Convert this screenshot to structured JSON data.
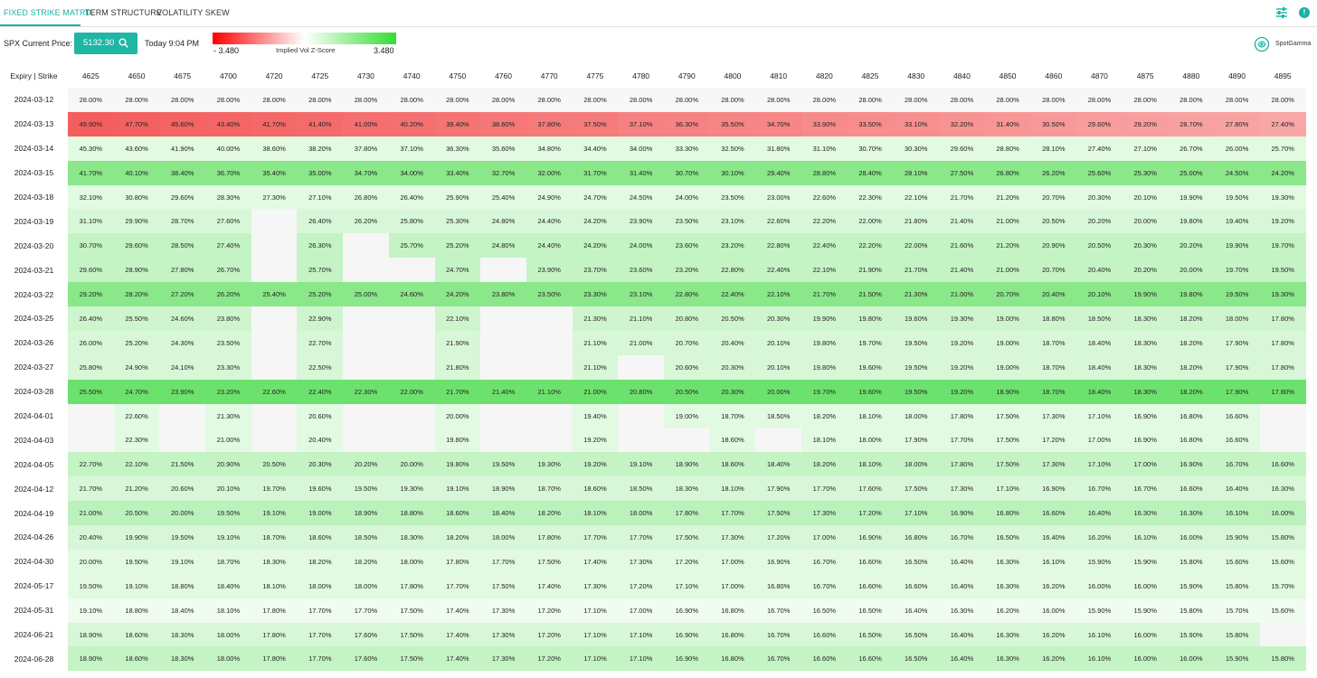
{
  "tabs": [
    {
      "label": "FIXED STRIKE MATRIX",
      "active": true
    },
    {
      "label": "TERM STRUCTURE",
      "active": false
    },
    {
      "label": "VOLATILITY SKEW",
      "active": false
    }
  ],
  "header": {
    "price_label": "SPX Current Price:",
    "price_value": "5132.30",
    "time": "Today 9:04 PM",
    "z_min": "- 3.480",
    "z_label": "Implied Vol Z-Score",
    "z_max": "3.480",
    "brand": "SpotGamma"
  },
  "colors": {
    "accent": "#1fb6a6",
    "negative": "#ff0000",
    "positive": "#33dd33"
  },
  "icons": [
    "filter-sliders-icon",
    "info-icon",
    "search-icon",
    "spotgamma-logo-icon"
  ],
  "matrix": {
    "corner_label": "Expiry | Strike",
    "strikes": [
      "4625",
      "4650",
      "4675",
      "4700",
      "4720",
      "4725",
      "4730",
      "4740",
      "4750",
      "4760",
      "4770",
      "4775",
      "4780",
      "4790",
      "4800",
      "4810",
      "4820",
      "4825",
      "4830",
      "4840",
      "4850",
      "4860",
      "4870",
      "4875",
      "4880",
      "4890",
      "4895"
    ],
    "rows": [
      {
        "expiry": "2024-03-12",
        "z": 0.0,
        "cells": [
          "28.00%",
          "28.00%",
          "28.00%",
          "28.00%",
          "28.00%",
          "28.00%",
          "28.00%",
          "28.00%",
          "28.00%",
          "28.00%",
          "28.00%",
          "28.00%",
          "28.00%",
          "28.00%",
          "28.00%",
          "28.00%",
          "28.00%",
          "28.00%",
          "28.00%",
          "28.00%",
          "28.00%",
          "28.00%",
          "28.00%",
          "28.00%",
          "28.00%",
          "28.00%",
          "28.00%"
        ]
      },
      {
        "expiry": "2024-03-13",
        "z": -1.0,
        "cells": [
          "49.90%",
          "47.70%",
          "45.60%",
          "43.40%",
          "41.70%",
          "41.40%",
          "41.00%",
          "40.20%",
          "39.40%",
          "38.60%",
          "37.80%",
          "37.50%",
          "37.10%",
          "36.30%",
          "35.50%",
          "34.70%",
          "33.90%",
          "33.50%",
          "33.10%",
          "32.20%",
          "31.40%",
          "30.50%",
          "29.60%",
          "29.20%",
          "28.70%",
          "27.80%",
          "27.40%"
        ]
      },
      {
        "expiry": "2024-03-14",
        "z": 0.15,
        "cells": [
          "45.30%",
          "43.60%",
          "41.90%",
          "40.00%",
          "38.60%",
          "38.20%",
          "37.80%",
          "37.10%",
          "36.30%",
          "35.60%",
          "34.80%",
          "34.40%",
          "34.00%",
          "33.30%",
          "32.50%",
          "31.80%",
          "31.10%",
          "30.70%",
          "30.30%",
          "29.60%",
          "28.80%",
          "28.10%",
          "27.40%",
          "27.10%",
          "26.70%",
          "26.00%",
          "25.70%"
        ]
      },
      {
        "expiry": "2024-03-15",
        "z": 0.6,
        "cells": [
          "41.70%",
          "40.10%",
          "38.40%",
          "36.70%",
          "35.40%",
          "35.00%",
          "34.70%",
          "34.00%",
          "33.40%",
          "32.70%",
          "32.00%",
          "31.70%",
          "31.40%",
          "30.70%",
          "30.10%",
          "29.40%",
          "28.80%",
          "28.40%",
          "28.10%",
          "27.50%",
          "26.80%",
          "26.20%",
          "25.60%",
          "25.30%",
          "25.00%",
          "24.50%",
          "24.20%"
        ]
      },
      {
        "expiry": "2024-03-18",
        "z": 0.15,
        "cells": [
          "32.10%",
          "30.80%",
          "29.60%",
          "28.30%",
          "27.30%",
          "27.10%",
          "26.80%",
          "26.40%",
          "25.90%",
          "25.40%",
          "24.90%",
          "24.70%",
          "24.50%",
          "24.00%",
          "23.50%",
          "23.00%",
          "22.60%",
          "22.30%",
          "22.10%",
          "21.70%",
          "21.20%",
          "20.70%",
          "20.30%",
          "20.10%",
          "19.90%",
          "19.50%",
          "19.30%"
        ]
      },
      {
        "expiry": "2024-03-19",
        "z": 0.2,
        "cells": [
          "31.10%",
          "29.90%",
          "28.70%",
          "27.60%",
          "",
          "26.40%",
          "26.20%",
          "25.80%",
          "25.30%",
          "24.80%",
          "24.40%",
          "24.20%",
          "23.90%",
          "23.50%",
          "23.10%",
          "22.60%",
          "22.20%",
          "22.00%",
          "21.80%",
          "21.40%",
          "21.00%",
          "20.50%",
          "20.20%",
          "20.00%",
          "19.80%",
          "19.40%",
          "19.20%"
        ]
      },
      {
        "expiry": "2024-03-20",
        "z": 0.3,
        "cells": [
          "30.70%",
          "29.60%",
          "28.50%",
          "27.40%",
          "",
          "26.30%",
          "",
          "25.70%",
          "25.20%",
          "24.80%",
          "24.40%",
          "24.20%",
          "24.00%",
          "23.60%",
          "23.20%",
          "22.80%",
          "22.40%",
          "22.20%",
          "22.00%",
          "21.60%",
          "21.20%",
          "20.90%",
          "20.50%",
          "20.30%",
          "20.20%",
          "19.90%",
          "19.70%"
        ]
      },
      {
        "expiry": "2024-03-21",
        "z": 0.3,
        "cells": [
          "29.60%",
          "28.90%",
          "27.80%",
          "26.70%",
          "",
          "25.70%",
          "",
          "",
          "24.70%",
          "",
          "23.90%",
          "23.70%",
          "23.60%",
          "23.20%",
          "22.80%",
          "22.40%",
          "22.10%",
          "21.90%",
          "21.70%",
          "21.40%",
          "21.00%",
          "20.70%",
          "20.40%",
          "20.20%",
          "20.00%",
          "19.70%",
          "19.50%"
        ]
      },
      {
        "expiry": "2024-03-22",
        "z": 0.6,
        "cells": [
          "29.20%",
          "28.20%",
          "27.20%",
          "26.20%",
          "25.40%",
          "25.20%",
          "25.00%",
          "24.60%",
          "24.20%",
          "23.80%",
          "23.50%",
          "23.30%",
          "23.10%",
          "22.80%",
          "22.40%",
          "22.10%",
          "21.70%",
          "21.50%",
          "21.30%",
          "21.00%",
          "20.70%",
          "20.40%",
          "20.10%",
          "19.90%",
          "19.80%",
          "19.50%",
          "19.30%"
        ]
      },
      {
        "expiry": "2024-03-25",
        "z": 0.25,
        "cells": [
          "26.40%",
          "25.50%",
          "24.60%",
          "23.80%",
          "",
          "22.90%",
          "",
          "",
          "22.10%",
          "",
          "",
          "21.30%",
          "21.10%",
          "20.80%",
          "20.50%",
          "20.30%",
          "19.90%",
          "19.80%",
          "19.60%",
          "19.30%",
          "19.00%",
          "18.80%",
          "18.50%",
          "18.30%",
          "18.20%",
          "18.00%",
          "17.80%"
        ]
      },
      {
        "expiry": "2024-03-26",
        "z": 0.2,
        "cells": [
          "26.00%",
          "25.20%",
          "24.30%",
          "23.50%",
          "",
          "22.70%",
          "",
          "",
          "21.90%",
          "",
          "",
          "21.10%",
          "21.00%",
          "20.70%",
          "20.40%",
          "20.10%",
          "19.80%",
          "19.70%",
          "19.50%",
          "19.20%",
          "19.00%",
          "18.70%",
          "18.40%",
          "18.30%",
          "18.20%",
          "17.90%",
          "17.80%"
        ]
      },
      {
        "expiry": "2024-03-27",
        "z": 0.2,
        "cells": [
          "25.80%",
          "24.90%",
          "24.10%",
          "23.30%",
          "",
          "22.50%",
          "",
          "",
          "21.80%",
          "",
          "",
          "21.10%",
          "",
          "20.60%",
          "20.30%",
          "20.10%",
          "19.80%",
          "19.60%",
          "19.50%",
          "19.20%",
          "19.00%",
          "18.70%",
          "18.40%",
          "18.30%",
          "18.20%",
          "17.90%",
          "17.80%"
        ]
      },
      {
        "expiry": "2024-03-28",
        "z": 0.75,
        "cells": [
          "25.50%",
          "24.70%",
          "23.90%",
          "23.20%",
          "22.60%",
          "22.40%",
          "22.30%",
          "22.00%",
          "21.70%",
          "21.40%",
          "21.10%",
          "21.00%",
          "20.80%",
          "20.50%",
          "20.30%",
          "20.00%",
          "19.70%",
          "19.60%",
          "19.50%",
          "19.20%",
          "18.90%",
          "18.70%",
          "18.40%",
          "18.30%",
          "18.20%",
          "17.90%",
          "17.80%"
        ]
      },
      {
        "expiry": "2024-04-01",
        "z": 0.15,
        "cells": [
          "",
          "22.60%",
          "",
          "21.30%",
          "",
          "20.60%",
          "",
          "",
          "20.00%",
          "",
          "",
          "19.40%",
          "",
          "19.00%",
          "18.70%",
          "18.50%",
          "18.20%",
          "18.10%",
          "18.00%",
          "17.80%",
          "17.50%",
          "17.30%",
          "17.10%",
          "16.90%",
          "16.80%",
          "16.60%",
          ""
        ]
      },
      {
        "expiry": "2024-04-03",
        "z": 0.15,
        "cells": [
          "",
          "22.30%",
          "",
          "21.00%",
          "",
          "20.40%",
          "",
          "",
          "19.80%",
          "",
          "",
          "19.20%",
          "",
          "",
          "18.60%",
          "",
          "18.10%",
          "18.00%",
          "17.90%",
          "17.70%",
          "17.50%",
          "17.20%",
          "17.00%",
          "16.90%",
          "16.80%",
          "16.60%",
          ""
        ]
      },
      {
        "expiry": "2024-04-05",
        "z": 0.3,
        "cells": [
          "22.70%",
          "22.10%",
          "21.50%",
          "20.90%",
          "20.50%",
          "20.30%",
          "20.20%",
          "20.00%",
          "19.80%",
          "19.50%",
          "19.30%",
          "19.20%",
          "19.10%",
          "18.90%",
          "18.60%",
          "18.40%",
          "18.20%",
          "18.10%",
          "18.00%",
          "17.80%",
          "17.50%",
          "17.30%",
          "17.10%",
          "17.00%",
          "16.90%",
          "16.70%",
          "16.60%"
        ]
      },
      {
        "expiry": "2024-04-12",
        "z": 0.2,
        "cells": [
          "21.70%",
          "21.20%",
          "20.60%",
          "20.10%",
          "19.70%",
          "19.60%",
          "19.50%",
          "19.30%",
          "19.10%",
          "18.90%",
          "18.70%",
          "18.60%",
          "18.50%",
          "18.30%",
          "18.10%",
          "17.90%",
          "17.70%",
          "17.60%",
          "17.50%",
          "17.30%",
          "17.10%",
          "16.90%",
          "16.70%",
          "16.70%",
          "16.60%",
          "16.40%",
          "16.30%"
        ]
      },
      {
        "expiry": "2024-04-19",
        "z": 0.35,
        "cells": [
          "21.00%",
          "20.50%",
          "20.00%",
          "19.50%",
          "19.10%",
          "19.00%",
          "18.90%",
          "18.80%",
          "18.60%",
          "18.40%",
          "18.20%",
          "18.10%",
          "18.00%",
          "17.80%",
          "17.70%",
          "17.50%",
          "17.30%",
          "17.20%",
          "17.10%",
          "16.90%",
          "16.80%",
          "16.60%",
          "16.40%",
          "16.30%",
          "16.30%",
          "16.10%",
          "16.00%"
        ]
      },
      {
        "expiry": "2024-04-26",
        "z": 0.2,
        "cells": [
          "20.40%",
          "19.90%",
          "19.50%",
          "19.10%",
          "18.70%",
          "18.60%",
          "18.50%",
          "18.30%",
          "18.20%",
          "18.00%",
          "17.80%",
          "17.70%",
          "17.70%",
          "17.50%",
          "17.30%",
          "17.20%",
          "17.00%",
          "16.90%",
          "16.80%",
          "16.70%",
          "16.50%",
          "16.40%",
          "16.20%",
          "16.10%",
          "16.00%",
          "15.90%",
          "15.80%"
        ]
      },
      {
        "expiry": "2024-04-30",
        "z": 0.15,
        "cells": [
          "20.00%",
          "19.50%",
          "19.10%",
          "18.70%",
          "18.30%",
          "18.20%",
          "18.20%",
          "18.00%",
          "17.80%",
          "17.70%",
          "17.50%",
          "17.40%",
          "17.30%",
          "17.20%",
          "17.00%",
          "16.90%",
          "16.70%",
          "16.60%",
          "16.50%",
          "16.40%",
          "16.30%",
          "16.10%",
          "15.90%",
          "15.90%",
          "15.80%",
          "15.60%",
          "15.60%"
        ]
      },
      {
        "expiry": "2024-05-17",
        "z": 0.15,
        "cells": [
          "19.50%",
          "19.10%",
          "18.80%",
          "18.40%",
          "18.10%",
          "18.00%",
          "18.00%",
          "17.80%",
          "17.70%",
          "17.50%",
          "17.40%",
          "17.30%",
          "17.20%",
          "17.10%",
          "17.00%",
          "16.80%",
          "16.70%",
          "16.60%",
          "16.60%",
          "16.40%",
          "16.30%",
          "16.20%",
          "16.00%",
          "16.00%",
          "15.90%",
          "15.80%",
          "15.70%"
        ]
      },
      {
        "expiry": "2024-05-31",
        "z": 0.08,
        "cells": [
          "19.10%",
          "18.80%",
          "18.40%",
          "18.10%",
          "17.80%",
          "17.70%",
          "17.70%",
          "17.50%",
          "17.40%",
          "17.30%",
          "17.20%",
          "17.10%",
          "17.00%",
          "16.90%",
          "16.80%",
          "16.70%",
          "16.50%",
          "16.50%",
          "16.40%",
          "16.30%",
          "16.20%",
          "16.00%",
          "15.90%",
          "15.90%",
          "15.80%",
          "15.70%",
          "15.60%"
        ]
      },
      {
        "expiry": "2024-06-21",
        "z": 0.2,
        "cells": [
          "18.90%",
          "18.60%",
          "18.30%",
          "18.00%",
          "17.80%",
          "17.70%",
          "17.60%",
          "17.50%",
          "17.40%",
          "17.30%",
          "17.20%",
          "17.10%",
          "17.10%",
          "16.90%",
          "16.80%",
          "16.70%",
          "16.60%",
          "16.50%",
          "16.50%",
          "16.40%",
          "16.30%",
          "16.20%",
          "16.10%",
          "16.00%",
          "15.90%",
          "15.80%",
          ""
        ]
      },
      {
        "expiry": "2024-06-28",
        "z": 0.3,
        "cells": [
          "18.90%",
          "18.60%",
          "18.30%",
          "18.00%",
          "17.80%",
          "17.70%",
          "17.60%",
          "17.50%",
          "17.40%",
          "17.30%",
          "17.20%",
          "17.10%",
          "17.10%",
          "16.90%",
          "16.80%",
          "16.70%",
          "16.60%",
          "16.60%",
          "16.50%",
          "16.40%",
          "16.30%",
          "16.20%",
          "16.10%",
          "16.00%",
          "16.00%",
          "15.90%",
          "15.80%"
        ]
      }
    ]
  }
}
